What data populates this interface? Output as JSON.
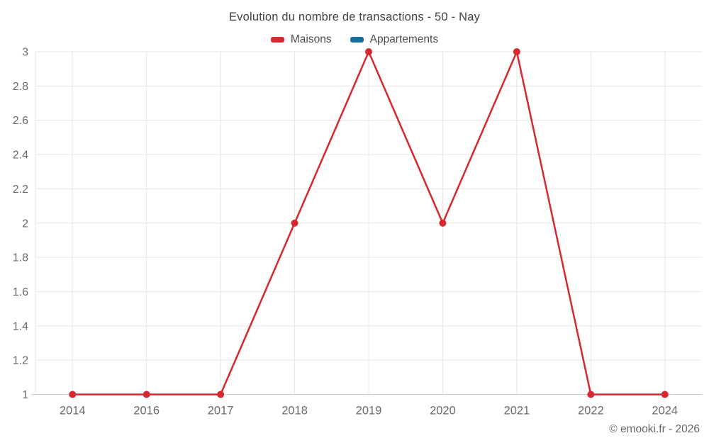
{
  "header": {
    "title": "Evolution du nombre de transactions - 50 - Nay"
  },
  "footer": {
    "copyright": "© emooki.fr - 2026"
  },
  "colors": {
    "background": "#ffffff",
    "grid": "#e6e6e6",
    "baseline": "#c9c9c9",
    "tick_label": "#6b6b6b",
    "title_text": "#424242",
    "legend_text": "#4d4d4d",
    "copyright_text": "#666666"
  },
  "chart_data": {
    "type": "line",
    "title": "Evolution du nombre de transactions - 50 - Nay",
    "categories": [
      "2014",
      "2016",
      "2017",
      "2018",
      "2019",
      "2020",
      "2021",
      "2022",
      "2024"
    ],
    "series": [
      {
        "name": "Maisons",
        "color": "#d7282f",
        "values": [
          1,
          1,
          1,
          2,
          3,
          2,
          3,
          1,
          1
        ]
      },
      {
        "name": "Appartements",
        "color": "#186e9c",
        "values": []
      }
    ],
    "xlabel": "",
    "ylabel": "",
    "ylim": [
      1,
      3
    ],
    "yticks": [
      "1",
      "1.2",
      "1.4",
      "1.6",
      "1.8",
      "2",
      "2.2",
      "2.4",
      "2.6",
      "2.8",
      "3"
    ],
    "grid": true,
    "legend_position": "top",
    "marker": "circle",
    "marker_radius": 5,
    "line_width": 2.5
  }
}
